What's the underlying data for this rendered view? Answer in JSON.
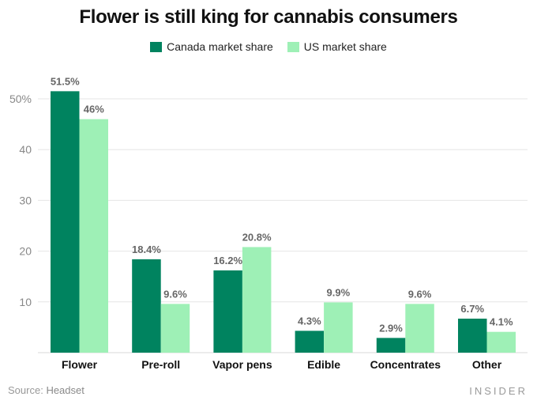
{
  "chart_data": {
    "type": "bar",
    "title": "Flower is still king for cannabis consumers",
    "categories": [
      "Flower",
      "Pre-roll",
      "Vapor pens",
      "Edible",
      "Concentrates",
      "Other"
    ],
    "series": [
      {
        "name": "Canada market share",
        "color": "#00835f",
        "values": [
          51.5,
          18.4,
          16.2,
          4.3,
          2.9,
          6.7
        ],
        "labels": [
          "51.5%",
          "18.4%",
          "16.2%",
          "4.3%",
          "2.9%",
          "6.7%"
        ]
      },
      {
        "name": "US market share",
        "color": "#9ef0b6",
        "values": [
          46,
          9.6,
          20.8,
          9.9,
          9.6,
          4.1
        ],
        "labels": [
          "46%",
          "9.6%",
          "20.8%",
          "9.9%",
          "9.6%",
          "4.1%"
        ]
      }
    ],
    "yticks": [
      10,
      20,
      30,
      40,
      50
    ],
    "ytick_labels": [
      "10",
      "20",
      "30",
      "40",
      "50%"
    ],
    "ylim": [
      0,
      50
    ],
    "xlabel": "",
    "ylabel": "",
    "grid": true,
    "legend_position": "top-center"
  },
  "footer": {
    "source_label": "Source:",
    "source_value": "Headset",
    "brand": "INSIDER"
  }
}
